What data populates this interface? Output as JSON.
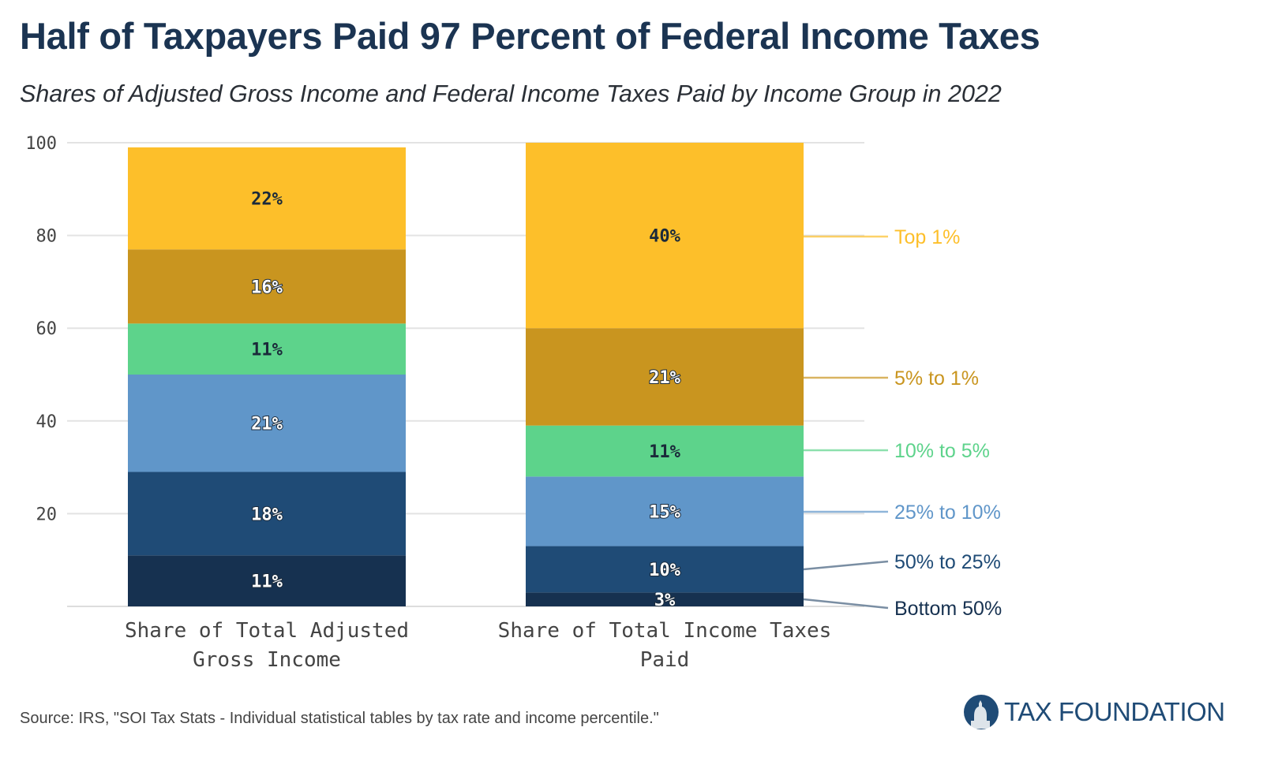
{
  "chart_data": {
    "type": "bar",
    "stacked": true,
    "title": "Half of Taxpayers Paid 97 Percent of Federal Income Taxes",
    "subtitle": "Shares of Adjusted Gross Income and Federal Income Taxes Paid by Income Group in 2022",
    "categories": [
      [
        "Share of Total Adjusted",
        "Gross Income"
      ],
      [
        "Share of Total Income Taxes",
        "Paid"
      ]
    ],
    "ylim": [
      0,
      100
    ],
    "yticks": [
      "20",
      "40",
      "60",
      "80",
      "100"
    ],
    "grid": true,
    "legend": "right, direct labels",
    "series": [
      {
        "name": "Bottom 50%",
        "color": "#163150",
        "values": [
          11,
          3
        ],
        "labels": [
          "11%",
          "3%"
        ]
      },
      {
        "name": "50% to 25%",
        "color": "#1f4b76",
        "values": [
          18,
          10
        ],
        "labels": [
          "18%",
          "10%"
        ]
      },
      {
        "name": "25% to 10%",
        "color": "#6096c9",
        "values": [
          21,
          15
        ],
        "labels": [
          "21%",
          "15%"
        ]
      },
      {
        "name": "10% to 5%",
        "color": "#5dd38b",
        "values": [
          11,
          11
        ],
        "labels": [
          "11%",
          "11%"
        ]
      },
      {
        "name": "5% to 1%",
        "color": "#c9951f",
        "values": [
          16,
          21
        ],
        "labels": [
          "16%",
          "21%"
        ]
      },
      {
        "name": "Top 1%",
        "color": "#fdbf2a",
        "values": [
          22,
          40
        ],
        "labels": [
          "22%",
          "40%"
        ]
      }
    ]
  },
  "source": "Source: IRS, \"SOI Tax Stats - Individual statistical tables by tax rate and income percentile.\"",
  "logo": {
    "text": "TAX FOUNDATION",
    "icon": "capitol-dome-icon"
  }
}
